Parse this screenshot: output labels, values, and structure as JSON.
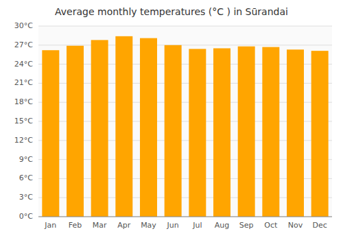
{
  "chart_data": {
    "type": "bar",
    "title": "Average monthly temperatures (°C ) in Sūrandai",
    "categories": [
      "Jan",
      "Feb",
      "Mar",
      "Apr",
      "May",
      "Jun",
      "Jul",
      "Aug",
      "Sep",
      "Oct",
      "Nov",
      "Dec"
    ],
    "values": [
      26.2,
      26.9,
      27.8,
      28.4,
      28.1,
      27.0,
      26.4,
      26.5,
      26.8,
      26.7,
      26.3,
      26.1
    ],
    "color": "#FFA500",
    "ylim": [
      0,
      30
    ],
    "yticks": [
      {
        "value": 0,
        "label": "0°C"
      },
      {
        "value": 3,
        "label": "3°C"
      },
      {
        "value": 6,
        "label": "6°C"
      },
      {
        "value": 9,
        "label": "9°C"
      },
      {
        "value": 12,
        "label": "12°C"
      },
      {
        "value": 15,
        "label": "15°C"
      },
      {
        "value": 18,
        "label": "18°C"
      },
      {
        "value": 21,
        "label": "21°C"
      },
      {
        "value": 24,
        "label": "24°C"
      },
      {
        "value": 27,
        "label": "27°C"
      },
      {
        "value": 30,
        "label": "30°C"
      }
    ],
    "grid": true
  }
}
